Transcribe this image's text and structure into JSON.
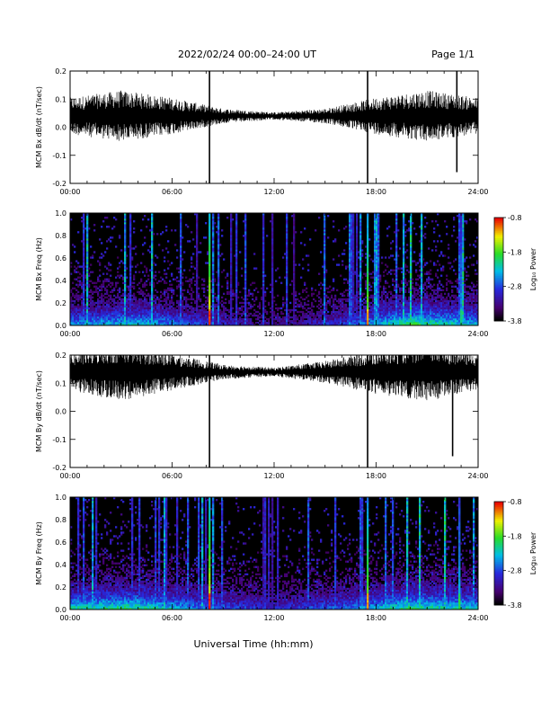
{
  "header": {
    "title": "2022/02/24  00:00–24:00 UT",
    "page": "Page 1/1"
  },
  "footer": {
    "xlabel": "Universal Time (hh:mm)"
  },
  "colors": {
    "trace": "#000000",
    "background_spectrogram": "#000000"
  },
  "chart_data": [
    {
      "type": "line",
      "ylabel": "MCM Bx dB/dt (nT/sec)",
      "xlim": [
        0,
        24
      ],
      "ylim": [
        -0.2,
        0.2
      ],
      "x_ticks": [
        "00:00",
        "06:00",
        "12:00",
        "18:00",
        "24:00"
      ],
      "y_ticks": [
        "-0.2",
        "-0.1",
        "0.0",
        "0.1",
        "0.2"
      ],
      "baseline": 0.04,
      "spikes": [
        {
          "t": 8.2,
          "min": -0.2,
          "max": 0.2
        },
        {
          "t": 17.5,
          "min": -0.2,
          "max": 0.2
        },
        {
          "t": 22.75,
          "min": -0.16,
          "max": 0.2
        }
      ],
      "noise_envelope": [
        {
          "t": 0,
          "amp": 0.05
        },
        {
          "t": 3,
          "amp": 0.07
        },
        {
          "t": 6,
          "amp": 0.05
        },
        {
          "t": 9,
          "amp": 0.02
        },
        {
          "t": 12,
          "amp": 0.01
        },
        {
          "t": 15,
          "amp": 0.02
        },
        {
          "t": 18,
          "amp": 0.05
        },
        {
          "t": 21,
          "amp": 0.07
        },
        {
          "t": 24,
          "amp": 0.05
        }
      ]
    },
    {
      "type": "heatmap",
      "ylabel": "MCM Bx Freq (Hz)",
      "xlim": [
        0,
        24
      ],
      "ylim": [
        0,
        1
      ],
      "x_ticks": [
        "00:00",
        "06:00",
        "12:00",
        "18:00",
        "24:00"
      ],
      "y_ticks": [
        "0.0",
        "0.2",
        "0.4",
        "0.6",
        "0.8",
        "1.0"
      ],
      "colorbar": {
        "label": "Log₁₀ Power",
        "ticks": [
          "-0.8",
          "-1.8",
          "-2.8",
          "-3.8"
        ],
        "range": [
          -3.8,
          -0.8
        ]
      },
      "bright_lines": [
        {
          "t": 8.2,
          "level": 0.85
        },
        {
          "t": 17.5,
          "level": 0.75
        },
        {
          "t": 23.0,
          "level": 0.45
        }
      ],
      "activity": [
        {
          "t": 0,
          "v": 0.5
        },
        {
          "t": 4,
          "v": 0.6
        },
        {
          "t": 8,
          "v": 0.35
        },
        {
          "t": 12,
          "v": 0.15
        },
        {
          "t": 16,
          "v": 0.35
        },
        {
          "t": 20,
          "v": 0.75
        },
        {
          "t": 24,
          "v": 0.55
        }
      ]
    },
    {
      "type": "line",
      "ylabel": "MCM By dB/dt (nT/sec)",
      "xlim": [
        0,
        24
      ],
      "ylim": [
        -0.2,
        0.2
      ],
      "x_ticks": [
        "00:00",
        "06:00",
        "12:00",
        "18:00",
        "24:00"
      ],
      "y_ticks": [
        "-0.2",
        "-0.1",
        "0.0",
        "0.1",
        "0.2"
      ],
      "baseline": 0.14,
      "spikes": [
        {
          "t": 8.2,
          "min": -0.2,
          "max": 0.2
        },
        {
          "t": 17.5,
          "min": -0.2,
          "max": 0.2
        },
        {
          "t": 22.5,
          "min": -0.16,
          "max": 0.2
        }
      ],
      "noise_envelope": [
        {
          "t": 0,
          "amp": 0.05
        },
        {
          "t": 3,
          "amp": 0.08
        },
        {
          "t": 6,
          "amp": 0.05
        },
        {
          "t": 9,
          "amp": 0.02
        },
        {
          "t": 12,
          "amp": 0.012
        },
        {
          "t": 15,
          "amp": 0.03
        },
        {
          "t": 18,
          "amp": 0.06
        },
        {
          "t": 21,
          "amp": 0.08
        },
        {
          "t": 24,
          "amp": 0.05
        }
      ]
    },
    {
      "type": "heatmap",
      "ylabel": "MCM By Freq (Hz)",
      "xlim": [
        0,
        24
      ],
      "ylim": [
        0,
        1
      ],
      "x_ticks": [
        "00:00",
        "06:00",
        "12:00",
        "18:00",
        "24:00"
      ],
      "y_ticks": [
        "0.0",
        "0.2",
        "0.4",
        "0.6",
        "0.8",
        "1.0"
      ],
      "colorbar": {
        "label": "Log₁₀ Power",
        "ticks": [
          "-0.8",
          "-1.8",
          "-2.8",
          "-3.8"
        ],
        "range": [
          -3.8,
          -0.8
        ]
      },
      "bright_lines": [
        {
          "t": 8.2,
          "level": 0.85
        },
        {
          "t": 17.5,
          "level": 0.75
        },
        {
          "t": 22.9,
          "level": 0.5
        }
      ],
      "activity": [
        {
          "t": 0,
          "v": 0.65
        },
        {
          "t": 4,
          "v": 0.7
        },
        {
          "t": 8,
          "v": 0.45
        },
        {
          "t": 12,
          "v": 0.3
        },
        {
          "t": 16,
          "v": 0.45
        },
        {
          "t": 20,
          "v": 0.7
        },
        {
          "t": 24,
          "v": 0.6
        }
      ]
    }
  ]
}
